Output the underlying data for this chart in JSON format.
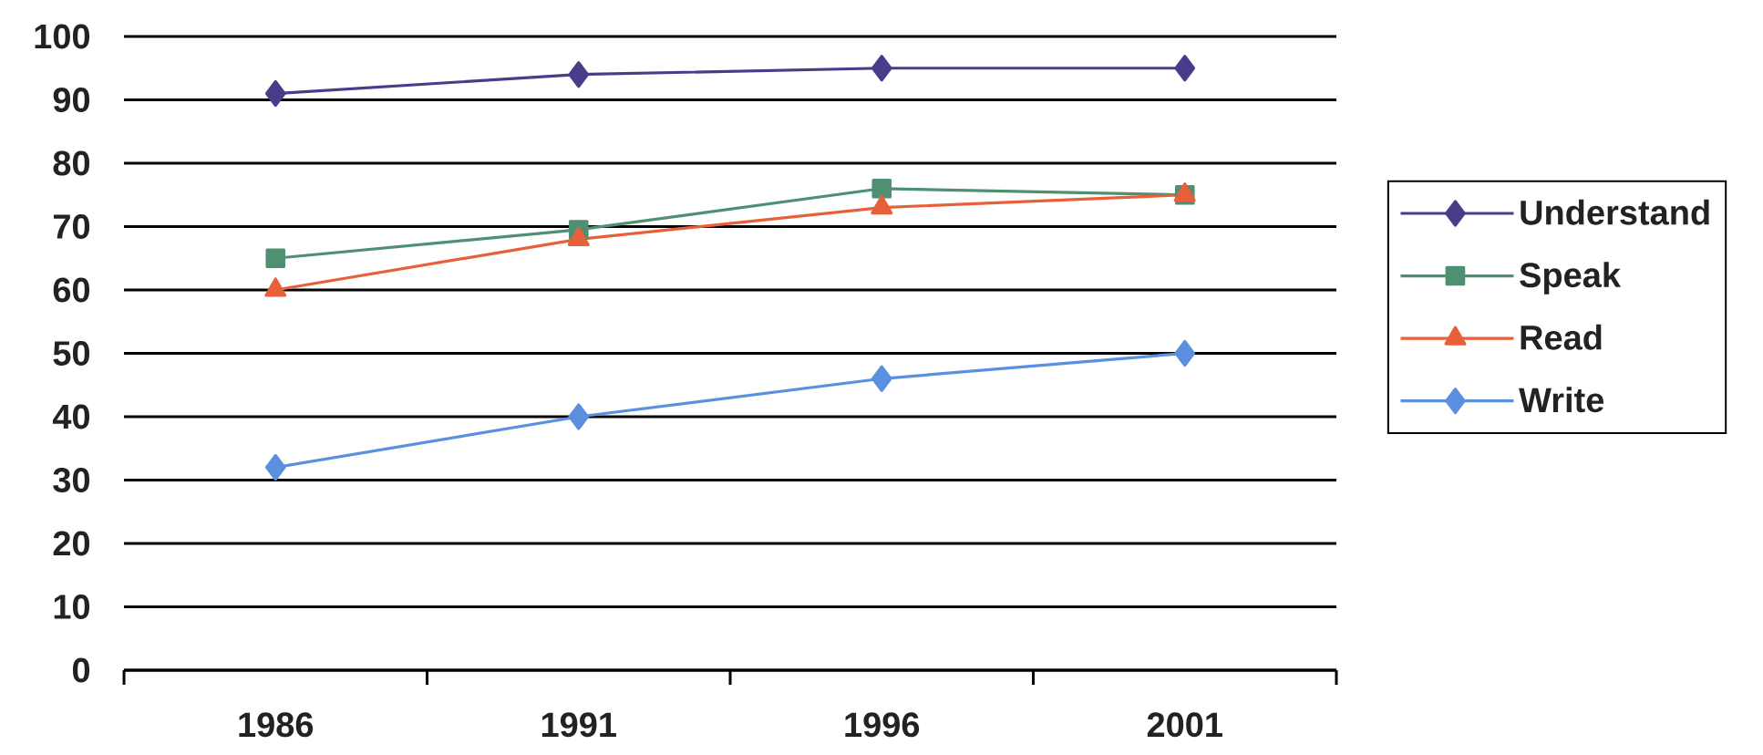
{
  "chart_data": {
    "type": "line",
    "categories": [
      "1986",
      "1991",
      "1996",
      "2001"
    ],
    "ylim": [
      0,
      100
    ],
    "yticks": [
      0,
      10,
      20,
      30,
      40,
      50,
      60,
      70,
      80,
      90,
      100
    ],
    "grid": "y",
    "legend": "right",
    "line_style": "solid",
    "series": [
      {
        "name": "Understand",
        "color": "#483d8b",
        "marker": "diamond",
        "values": [
          91,
          94,
          95,
          95
        ]
      },
      {
        "name": "Speak",
        "color": "#4f8f72",
        "marker": "square",
        "values": [
          65,
          69.5,
          76,
          75
        ]
      },
      {
        "name": "Read",
        "color": "#e8603a",
        "marker": "triangle",
        "values": [
          60,
          68,
          73,
          75
        ]
      },
      {
        "name": "Write",
        "color": "#5b8fe0",
        "marker": "diamond",
        "values": [
          32,
          40,
          46,
          50
        ]
      }
    ]
  }
}
